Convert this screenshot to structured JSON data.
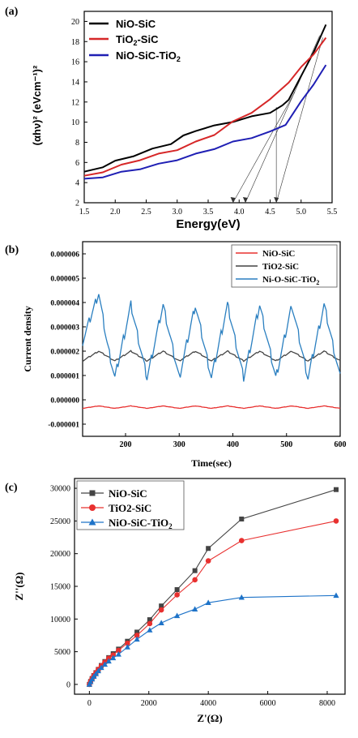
{
  "chart_data": [
    {
      "panel_label": "(a)",
      "type": "line",
      "xlabel": "Energy(eV)",
      "ylabel": "(αhν)² (eVcm⁻¹)²",
      "xlim": [
        1.5,
        5.5
      ],
      "ylim": [
        2,
        21
      ],
      "xticks": [
        "1.5",
        "2.0",
        "2.5",
        "3.0",
        "3.5",
        "4.0",
        "4.5",
        "5.0",
        "5.5"
      ],
      "yticks": [
        "2",
        "4",
        "6",
        "8",
        "10",
        "12",
        "14",
        "16",
        "18",
        "20"
      ],
      "legend_position": "top-left",
      "series": [
        {
          "name": "NiO-SiC",
          "color": "#000000",
          "x": [
            1.5,
            1.8,
            2.0,
            2.3,
            2.6,
            2.9,
            3.1,
            3.3,
            3.6,
            3.9,
            4.2,
            4.5,
            4.7,
            4.8,
            5.0,
            5.2,
            5.4
          ],
          "y": [
            5.0,
            5.6,
            6.1,
            6.7,
            7.3,
            7.9,
            8.6,
            9.2,
            9.6,
            10.1,
            10.5,
            11.0,
            11.6,
            12.3,
            14.5,
            17.0,
            19.6
          ]
        },
        {
          "name": "TiO2-SiC",
          "color": "#d62728",
          "x": [
            1.5,
            1.8,
            2.1,
            2.4,
            2.7,
            3.0,
            3.3,
            3.6,
            3.9,
            4.2,
            4.5,
            4.8,
            5.0,
            5.2,
            5.4
          ],
          "y": [
            4.6,
            5.1,
            5.7,
            6.3,
            6.8,
            7.3,
            8.0,
            8.8,
            10.0,
            11.0,
            12.2,
            14.0,
            15.4,
            16.8,
            18.3
          ]
        },
        {
          "name": "NiO-SiC-TiO2",
          "color": "#1f1fb4",
          "x": [
            1.5,
            1.8,
            2.1,
            2.4,
            2.7,
            3.0,
            3.3,
            3.6,
            3.9,
            4.2,
            4.5,
            4.75,
            5.0,
            5.2,
            5.4
          ],
          "y": [
            4.3,
            4.6,
            5.0,
            5.4,
            5.8,
            6.3,
            6.8,
            7.4,
            8.0,
            8.5,
            9.0,
            9.8,
            12.0,
            13.8,
            15.6
          ]
        }
      ],
      "annotations": {
        "tangent_intercepts_eV": [
          3.9,
          4.1,
          4.6
        ]
      }
    },
    {
      "panel_label": "(b)",
      "type": "line",
      "xlabel": "Time(sec)",
      "ylabel": "Current density",
      "xlim": [
        120,
        600
      ],
      "ylim": [
        -1.5e-06,
        6.5e-06
      ],
      "xticks": [
        "200",
        "300",
        "400",
        "500",
        "600"
      ],
      "yticks": [
        "-0.000001",
        "0.000000",
        "0.000001",
        "0.000002",
        "0.000003",
        "0.000004",
        "0.000005",
        "0.000006"
      ],
      "legend_position": "top-right",
      "series": [
        {
          "name": "NiO-SiC",
          "color": "#e8302f",
          "wave": {
            "base": -3e-07,
            "amplitude": 5e-08,
            "period": 60
          }
        },
        {
          "name": "TiO2-SiC",
          "color": "#444444",
          "wave": {
            "base": 1.8e-06,
            "amplitude": 2e-07,
            "period": 60
          }
        },
        {
          "name": "Ni-O-SiC-TiO2",
          "color": "#2a7fc0",
          "wave": {
            "base": 2.4e-06,
            "amplitude": 1.5e-06,
            "period": 60
          }
        }
      ]
    },
    {
      "panel_label": "(c)",
      "type": "scatter",
      "xlabel": "Z'(Ω)",
      "ylabel": "Z''(Ω)",
      "xlim": [
        -500,
        8600
      ],
      "ylim": [
        -1500,
        31500
      ],
      "xticks": [
        "0",
        "2000",
        "4000",
        "6000",
        "8000"
      ],
      "yticks": [
        "0",
        "5000",
        "10000",
        "15000",
        "20000",
        "25000",
        "30000"
      ],
      "legend_position": "top-left",
      "series": [
        {
          "name": "NiO-SiC",
          "color": "#444444",
          "marker": "square",
          "x": [
            0,
            40,
            90,
            150,
            220,
            300,
            400,
            520,
            650,
            800,
            980,
            1280,
            1600,
            2030,
            2420,
            2950,
            3550,
            4000,
            5120,
            8300
          ],
          "y": [
            0,
            450,
            900,
            1350,
            1800,
            2300,
            2900,
            3500,
            4100,
            4700,
            5400,
            6600,
            8000,
            9900,
            12000,
            14500,
            17400,
            20800,
            25300,
            29800
          ]
        },
        {
          "name": "TiO2-SiC",
          "color": "#e8302f",
          "marker": "circle",
          "x": [
            0,
            40,
            90,
            150,
            220,
            300,
            400,
            520,
            650,
            800,
            980,
            1280,
            1600,
            2030,
            2420,
            2950,
            3550,
            4000,
            5120,
            8300
          ],
          "y": [
            0,
            450,
            900,
            1350,
            1800,
            2300,
            2850,
            3400,
            4000,
            4500,
            5200,
            6300,
            7500,
            9300,
            11400,
            13700,
            16000,
            18900,
            22000,
            25000
          ]
        },
        {
          "name": "NiO-SiC-TiO2",
          "color": "#1e73c8",
          "marker": "triangle",
          "x": [
            0,
            40,
            90,
            150,
            220,
            300,
            400,
            520,
            650,
            800,
            980,
            1280,
            1600,
            2030,
            2420,
            2950,
            3550,
            4000,
            5120,
            8300
          ],
          "y": [
            0,
            400,
            800,
            1200,
            1600,
            2050,
            2550,
            3050,
            3550,
            4050,
            4600,
            5700,
            6900,
            8300,
            9400,
            10500,
            11500,
            12500,
            13300,
            13600
          ]
        }
      ]
    }
  ]
}
